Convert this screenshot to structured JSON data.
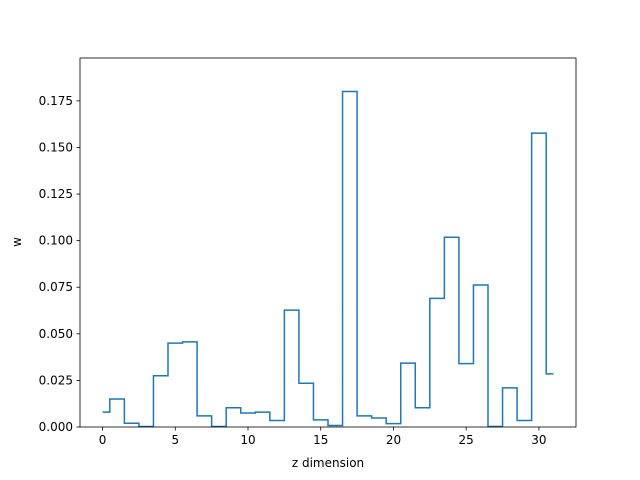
{
  "chart_data": {
    "type": "line",
    "drawstyle": "steps-mid",
    "title": "",
    "xlabel": "z dimension",
    "ylabel": "w",
    "xlim": [
      -1.55,
      32.55
    ],
    "ylim": [
      0,
      0.198
    ],
    "xticks": [
      0,
      5,
      10,
      15,
      20,
      25,
      30
    ],
    "yticks": [
      0.0,
      0.025,
      0.05,
      0.075,
      0.1,
      0.125,
      0.15,
      0.175
    ],
    "ytick_labels": [
      "0.000",
      "0.025",
      "0.050",
      "0.075",
      "0.100",
      "0.125",
      "0.150",
      "0.175"
    ],
    "grid": false,
    "color": "#1f77b4",
    "series": [
      {
        "x": [
          0,
          1,
          2,
          3,
          4,
          5,
          6,
          7,
          8,
          9,
          10,
          11,
          12,
          13,
          14,
          15,
          16,
          17,
          18,
          19,
          20,
          21,
          22,
          23,
          24,
          25,
          26,
          27,
          28,
          29,
          30,
          31
        ],
        "values": [
          0.008,
          0.015,
          0.002,
          0.0003,
          0.0275,
          0.045,
          0.0457,
          0.006,
          0.0003,
          0.0103,
          0.0075,
          0.008,
          0.0035,
          0.0627,
          0.0235,
          0.0038,
          0.0008,
          0.18,
          0.006,
          0.0048,
          0.0018,
          0.0343,
          0.0103,
          0.069,
          0.1018,
          0.034,
          0.0762,
          0.0003,
          0.021,
          0.0035,
          0.1577,
          0.0285
        ]
      }
    ]
  }
}
